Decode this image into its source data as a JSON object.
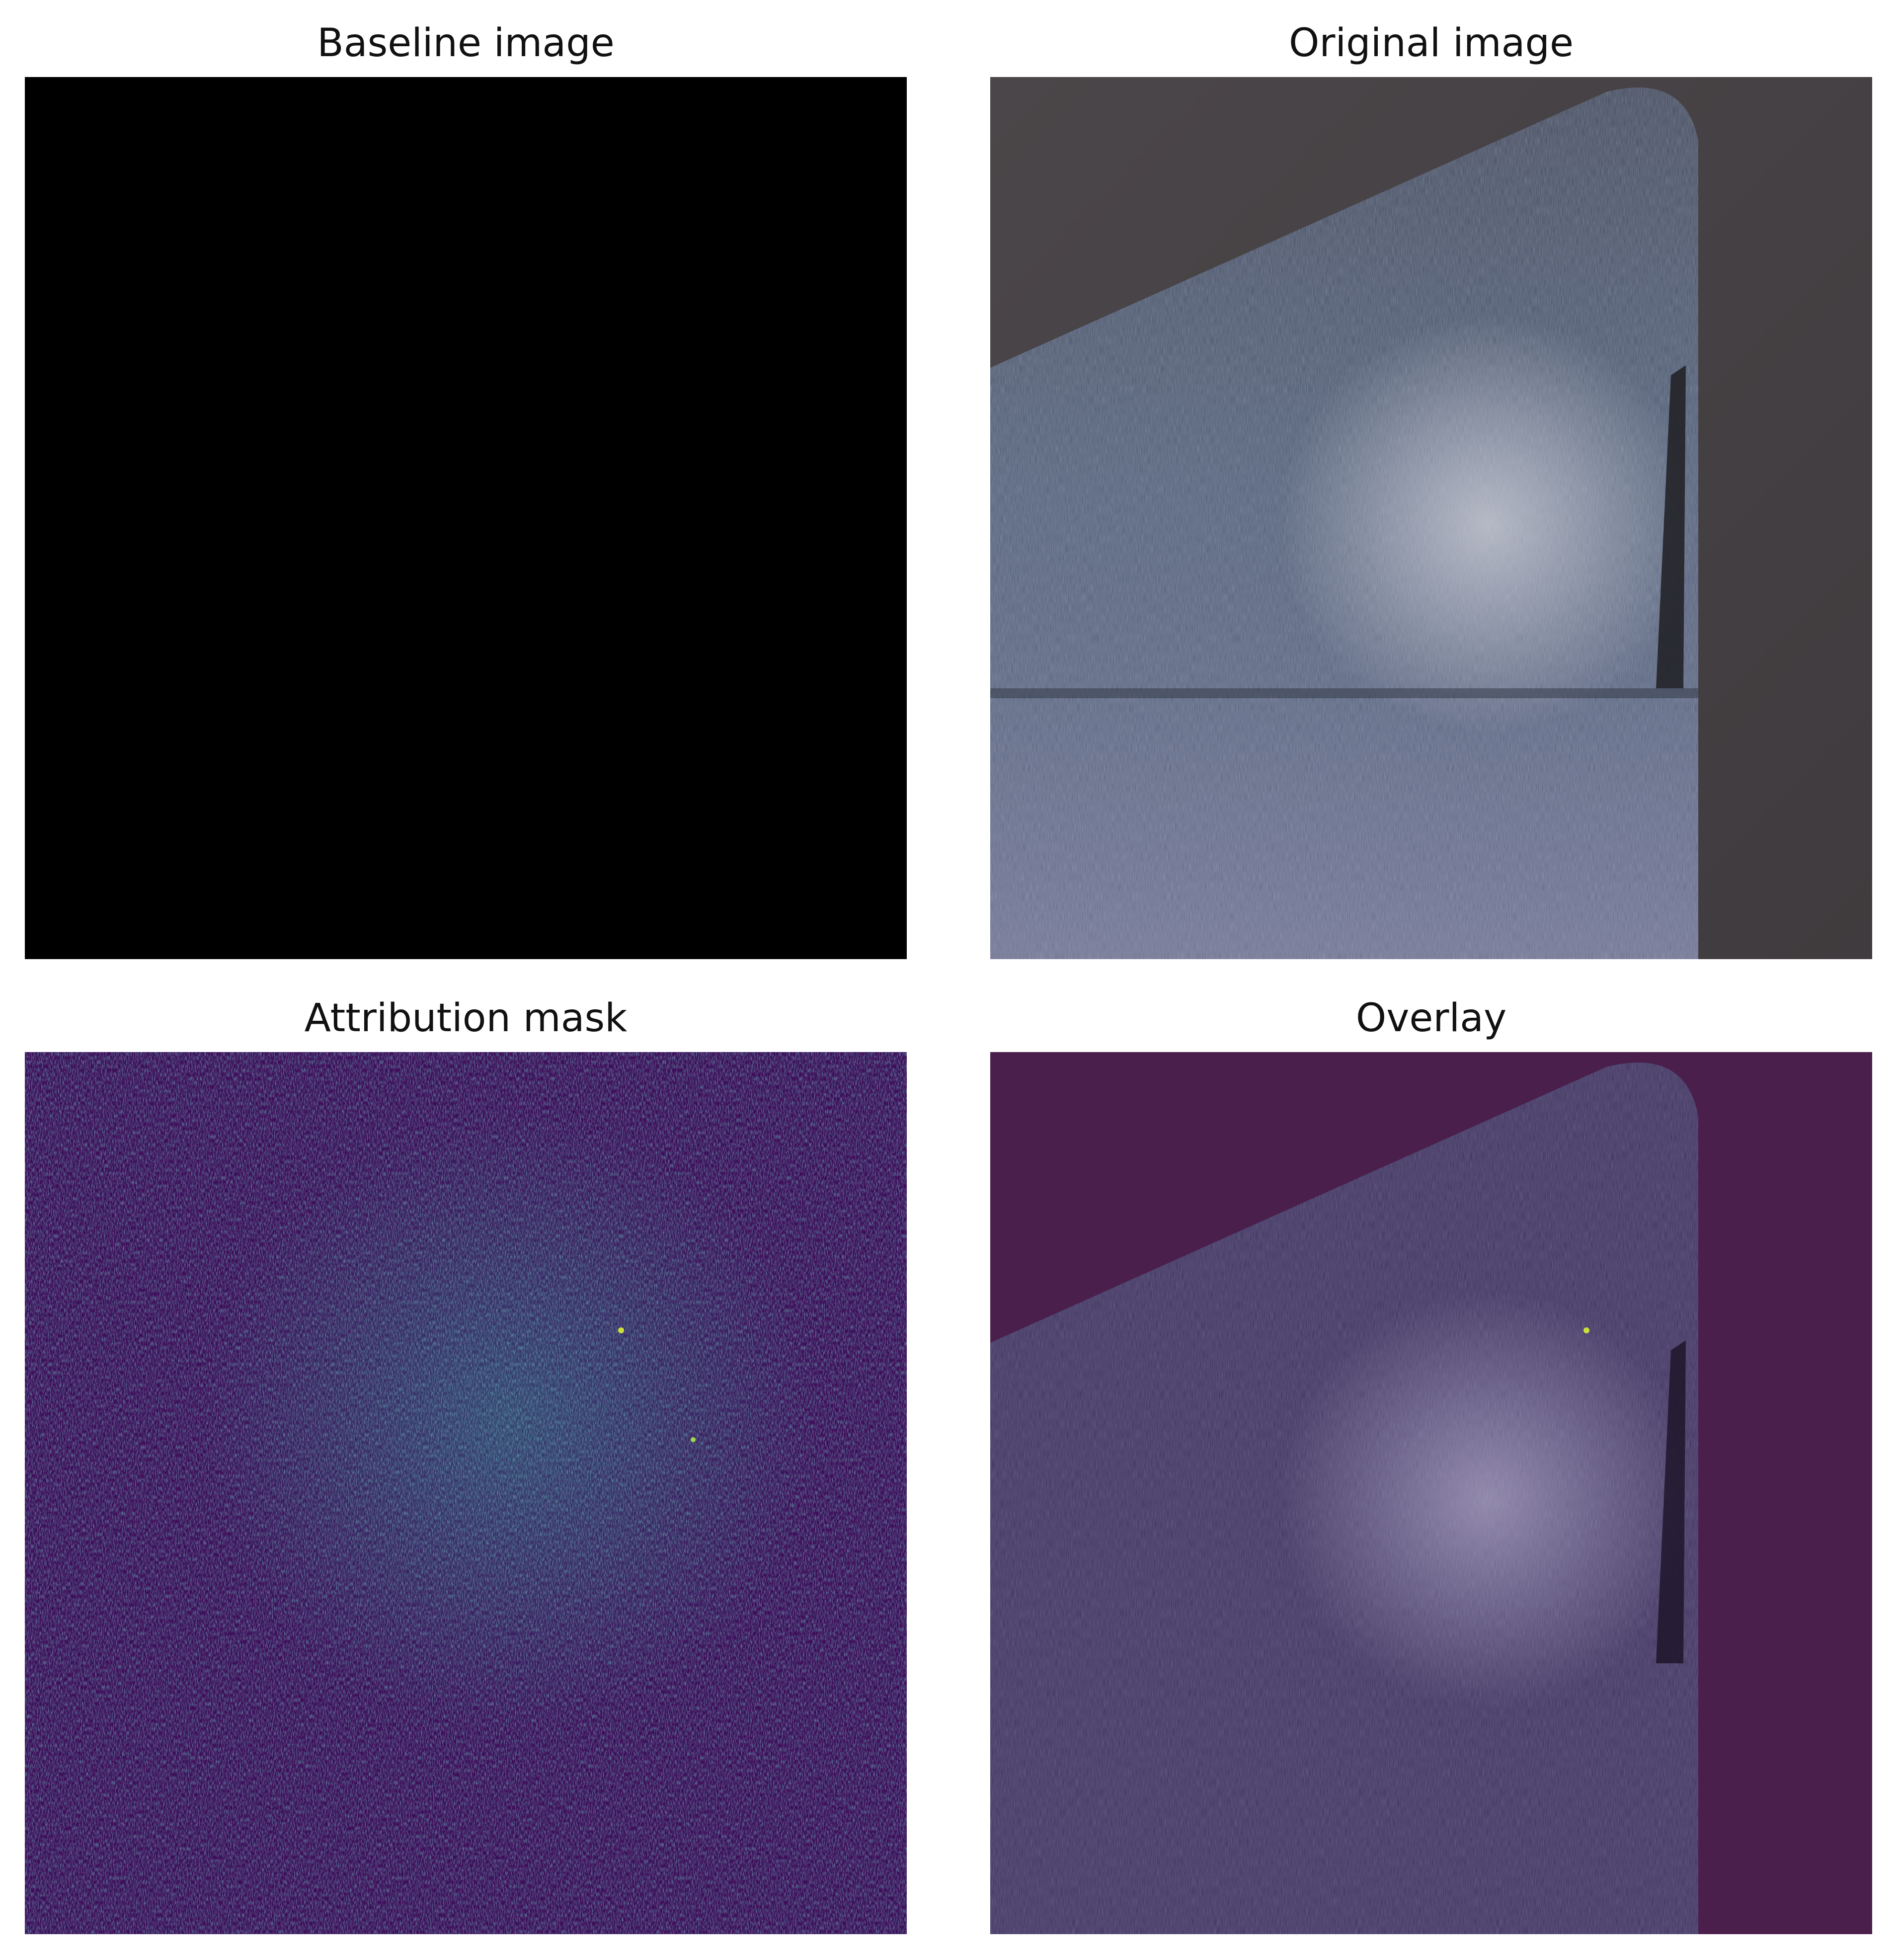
{
  "panels": [
    {
      "id": "baseline",
      "title": "Baseline image"
    },
    {
      "id": "original",
      "title": "Original image"
    },
    {
      "id": "attribution",
      "title": "Attribution mask"
    },
    {
      "id": "overlay",
      "title": "Overlay"
    }
  ],
  "colors": {
    "background": "#ffffff",
    "baseline_fill": "#000000",
    "original_background": "#4a4649",
    "metal_blue": "#4c5a6f",
    "metal_highlight": "#a9aeb6",
    "viridis_low": "#3e0c59",
    "viridis_mid": "#2a8a8c",
    "viridis_high": "#c8e03a",
    "overlay_tint": "#4a1f4c"
  }
}
